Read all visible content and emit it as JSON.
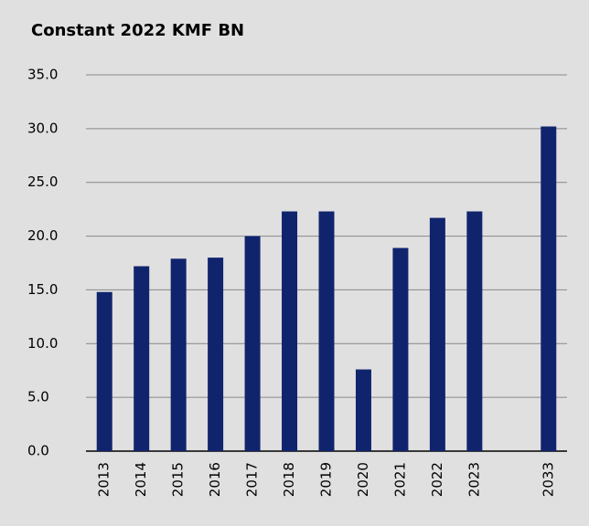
{
  "chart_data": {
    "type": "bar",
    "title": "Constant 2022 KMF BN",
    "categories": [
      "2013",
      "2014",
      "2015",
      "2016",
      "2017",
      "2018",
      "2019",
      "2020",
      "2021",
      "2022",
      "2023",
      null,
      "2033"
    ],
    "values": [
      14.8,
      17.2,
      17.9,
      18.0,
      20.0,
      22.3,
      22.3,
      7.6,
      18.9,
      21.7,
      22.3,
      null,
      30.2
    ],
    "color": "#10246e",
    "ylim": [
      0,
      35
    ],
    "yticks": [
      {
        "value": 0,
        "label": "0.0"
      },
      {
        "value": 5,
        "label": "5.0"
      },
      {
        "value": 10,
        "label": "10.0"
      },
      {
        "value": 15,
        "label": "15.0"
      },
      {
        "value": 20,
        "label": "20.0"
      },
      {
        "value": 25,
        "label": "25.0"
      },
      {
        "value": 30,
        "label": "30.0"
      },
      {
        "value": 35,
        "label": "35.0"
      }
    ],
    "grid": true
  }
}
